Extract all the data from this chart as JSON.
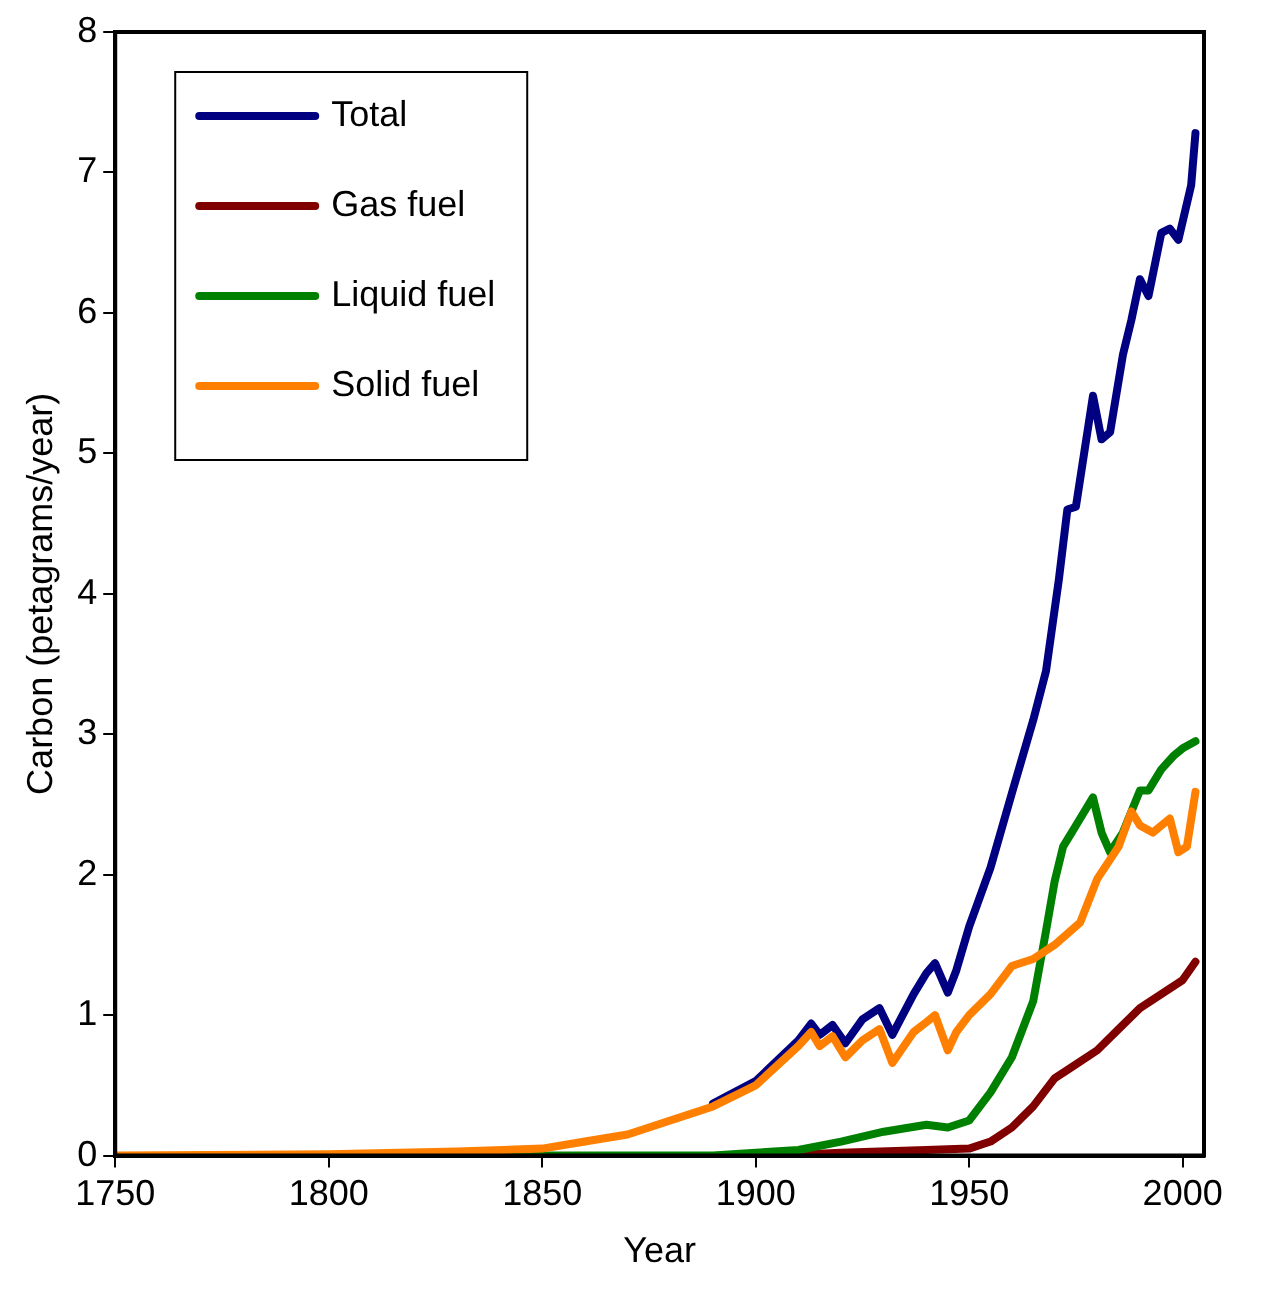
{
  "chart_data": {
    "type": "line",
    "xlabel": "Year",
    "ylabel": "Carbon (petagrams/year)",
    "xlim": [
      1750,
      2005
    ],
    "xticks": [
      1750,
      1800,
      1850,
      1900,
      1950,
      2000
    ],
    "ylim": [
      0,
      8
    ],
    "yticks": [
      0,
      1,
      2,
      3,
      4,
      5,
      6,
      7,
      8
    ],
    "grid": false,
    "legend": "top left",
    "marker": "none",
    "line_style": "solid",
    "series": [
      {
        "name": "Total",
        "color": "#000080",
        "x": [
          1890,
          1900,
          1910,
          1913,
          1915,
          1918,
          1921,
          1925,
          1929,
          1932,
          1937,
          1940,
          1942,
          1945,
          1947,
          1950,
          1955,
          1960,
          1965,
          1968,
          1971,
          1973,
          1975,
          1979,
          1981,
          1983,
          1986,
          1988,
          1990,
          1992,
          1995,
          1997,
          1999,
          2002,
          2003
        ],
        "values": [
          0.37,
          0.53,
          0.82,
          0.94,
          0.86,
          0.93,
          0.8,
          0.97,
          1.05,
          0.86,
          1.15,
          1.3,
          1.37,
          1.16,
          1.32,
          1.63,
          2.05,
          2.58,
          3.1,
          3.45,
          4.1,
          4.6,
          4.62,
          5.41,
          5.1,
          5.15,
          5.7,
          5.95,
          6.24,
          6.12,
          6.57,
          6.6,
          6.52,
          6.91,
          7.28
        ]
      },
      {
        "name": "Gas fuel",
        "color": "#800000",
        "x": [
          1905,
          1920,
          1940,
          1950,
          1955,
          1960,
          1965,
          1970,
          1975,
          1980,
          1985,
          1990,
          1995,
          2000,
          2003
        ],
        "values": [
          0,
          0.02,
          0.04,
          0.05,
          0.1,
          0.2,
          0.35,
          0.55,
          0.65,
          0.75,
          0.9,
          1.05,
          1.15,
          1.25,
          1.38
        ]
      },
      {
        "name": "Liquid fuel",
        "color": "#008000",
        "x": [
          1840,
          1890,
          1900,
          1910,
          1920,
          1930,
          1940,
          1945,
          1950,
          1955,
          1960,
          1965,
          1968,
          1970,
          1972,
          1974,
          1976,
          1979,
          1981,
          1983,
          1986,
          1988,
          1990,
          1992,
          1995,
          1998,
          2000,
          2003
        ],
        "values": [
          0,
          0,
          0.02,
          0.04,
          0.1,
          0.17,
          0.22,
          0.2,
          0.25,
          0.45,
          0.7,
          1.1,
          1.6,
          1.95,
          2.2,
          2.3,
          2.4,
          2.55,
          2.3,
          2.16,
          2.3,
          2.45,
          2.6,
          2.6,
          2.75,
          2.85,
          2.9,
          2.95
        ]
      },
      {
        "name": "Solid fuel",
        "color": "#ff8000",
        "x": [
          1750,
          1800,
          1830,
          1850,
          1860,
          1870,
          1880,
          1890,
          1900,
          1910,
          1913,
          1915,
          1918,
          1921,
          1925,
          1929,
          1932,
          1937,
          1940,
          1942,
          1945,
          1947,
          1950,
          1955,
          1960,
          1965,
          1970,
          1976,
          1980,
          1985,
          1988,
          1990,
          1993,
          1997,
          1999,
          2001,
          2003
        ],
        "values": [
          0,
          0.01,
          0.03,
          0.05,
          0.1,
          0.15,
          0.25,
          0.35,
          0.5,
          0.78,
          0.88,
          0.78,
          0.85,
          0.7,
          0.82,
          0.9,
          0.66,
          0.88,
          0.95,
          1.0,
          0.75,
          0.88,
          1.0,
          1.15,
          1.35,
          1.4,
          1.5,
          1.66,
          1.97,
          2.2,
          2.45,
          2.35,
          2.3,
          2.4,
          2.16,
          2.2,
          2.59
        ]
      }
    ]
  }
}
